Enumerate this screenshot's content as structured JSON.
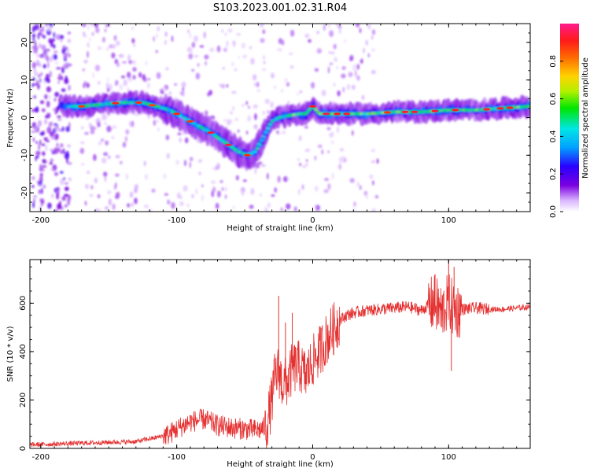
{
  "figure": {
    "title": "S103.2023.001.02.31.R04"
  },
  "chart_data": [
    {
      "type": "heatmap",
      "xlabel": "Height of straight line (km)",
      "ylabel": "Frequency (Hz)",
      "xlim": [
        -208,
        160
      ],
      "ylim": [
        -25,
        25
      ],
      "xticks": [
        -200,
        -100,
        0,
        100
      ],
      "yticks": [
        -20,
        -10,
        0,
        10,
        20
      ],
      "colorbar": {
        "label": "Normalized spectral amplitude",
        "range": [
          0,
          1
        ],
        "ticks": [
          "0.0",
          "0.2",
          "0.4",
          "0.6",
          "0.8"
        ],
        "colors": [
          "#ffffff",
          "#d9b3ff",
          "#7b00e0",
          "#2a00ff",
          "#00a0ff",
          "#00e6e6",
          "#00e600",
          "#b4f000",
          "#ffd200",
          "#ff6a00",
          "#ff1a1a",
          "#ff1a8c"
        ]
      },
      "ridge": {
        "name": "",
        "x": [
          -185,
          -170,
          -155,
          -140,
          -125,
          -115,
          -105,
          -95,
          -85,
          -75,
          -65,
          -55,
          -48,
          -42,
          -36,
          -30,
          -25,
          -18,
          -10,
          -5,
          0,
          5,
          20,
          40,
          60,
          80,
          100,
          120,
          140,
          160
        ],
        "y": [
          3,
          3,
          3.5,
          4,
          4,
          3,
          2,
          0,
          -2,
          -4,
          -6.5,
          -9,
          -10,
          -9,
          -5,
          -1,
          0,
          0.5,
          1,
          1,
          3,
          1,
          1,
          1,
          1.5,
          1.5,
          2,
          2,
          2.5,
          3
        ]
      }
    },
    {
      "type": "line",
      "xlabel": "Height of straight line (km)",
      "ylabel": "SNR (10 * v/v)",
      "xlim": [
        -208,
        160
      ],
      "ylim": [
        0,
        780
      ],
      "xticks": [
        -200,
        -100,
        0,
        100
      ],
      "yticks": [
        0,
        200,
        400,
        600
      ],
      "color": "#e53030",
      "series": [
        {
          "x": [
            -208,
            -190,
            -170,
            -150,
            -130,
            -115,
            -105,
            -100,
            -90,
            -80,
            -70,
            -60,
            -50,
            -40,
            -34,
            -30,
            -28,
            -25,
            -22,
            -18,
            -15,
            -10,
            -5,
            0,
            5,
            10,
            15,
            20,
            25,
            30,
            35,
            40,
            50,
            60,
            70,
            80,
            85,
            90,
            95,
            100,
            103,
            106,
            110,
            120,
            130,
            140,
            150,
            160
          ],
          "y": [
            15,
            18,
            22,
            25,
            28,
            45,
            60,
            80,
            110,
            120,
            95,
            85,
            80,
            75,
            90,
            200,
            290,
            320,
            260,
            280,
            330,
            340,
            300,
            360,
            400,
            450,
            490,
            530,
            550,
            560,
            565,
            570,
            575,
            580,
            585,
            570,
            590,
            600,
            560,
            610,
            580,
            570,
            575,
            580,
            575,
            575,
            580,
            585
          ]
        }
      ],
      "spikes": {
        "x": [
          -25,
          -20,
          -15,
          90,
          95,
          100,
          102,
          104
        ],
        "y": [
          630,
          520,
          560,
          720,
          500,
          780,
          320,
          750
        ]
      }
    }
  ]
}
